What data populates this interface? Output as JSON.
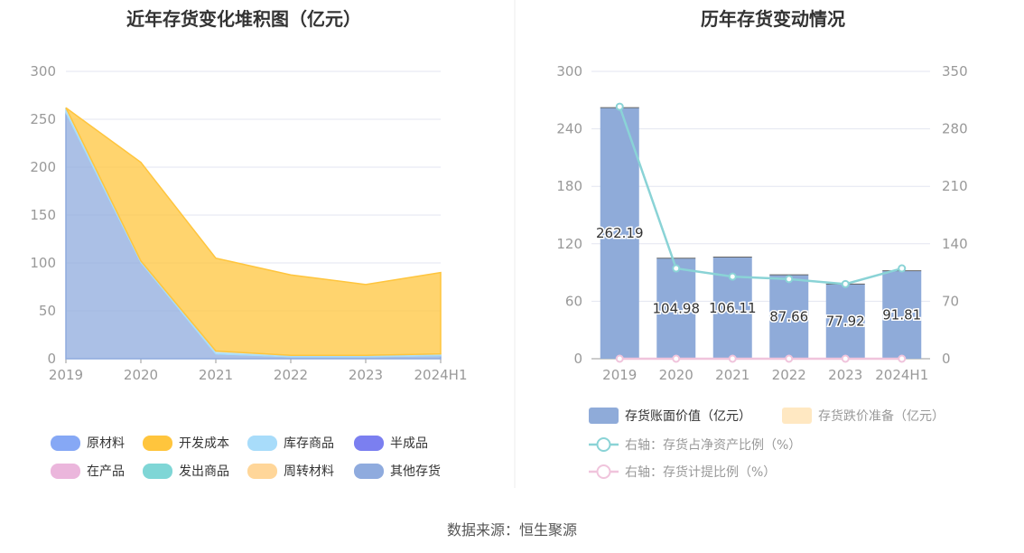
{
  "footer": {
    "source": "数据来源：恒生聚源"
  },
  "chart_data": [
    {
      "type": "area",
      "title": "近年存货变化堆积图（亿元）",
      "x": [
        "2019",
        "2020",
        "2021",
        "2022",
        "2023",
        "2024H1"
      ],
      "ylim": [
        0,
        300
      ],
      "yticks": [
        0,
        50,
        100,
        150,
        200,
        250,
        300
      ],
      "stacked": true,
      "grid": true,
      "legend_position": "bottom",
      "series": [
        {
          "name": "原材料",
          "color": "#86a8f5",
          "values": [
            0,
            0,
            0,
            0,
            0,
            0
          ]
        },
        {
          "name": "开发成本",
          "color": "#ffc53d",
          "values": [
            0,
            103,
            97,
            84,
            74,
            85
          ]
        },
        {
          "name": "库存商品",
          "color": "#a8dcfa",
          "values": [
            5,
            1.5,
            3,
            1.5,
            1.5,
            2
          ]
        },
        {
          "name": "半成品",
          "color": "#7b7ff0",
          "values": [
            0,
            0,
            0,
            0,
            0,
            0
          ]
        },
        {
          "name": "在产品",
          "color": "#ebb6dc",
          "values": [
            0,
            0,
            0,
            0,
            0,
            0
          ]
        },
        {
          "name": "发出商品",
          "color": "#7fd6d6",
          "values": [
            0,
            0,
            0,
            0,
            0,
            0
          ]
        },
        {
          "name": "周转材料",
          "color": "#ffd699",
          "values": [
            0,
            0,
            0,
            0,
            0,
            0
          ]
        },
        {
          "name": "其他存货",
          "color": "#8fabde",
          "values": [
            257,
            100.5,
            5,
            2,
            2,
            3
          ]
        }
      ]
    },
    {
      "type": "bar",
      "title": "历年存货变动情况",
      "categories": [
        "2019",
        "2020",
        "2021",
        "2022",
        "2023",
        "2024H1"
      ],
      "ylim": [
        0,
        300
      ],
      "yticks": [
        0,
        60,
        120,
        180,
        240,
        300
      ],
      "y2lim": [
        0,
        350
      ],
      "y2ticks": [
        0,
        70,
        140,
        210,
        280,
        350
      ],
      "grid": true,
      "legend_position": "bottom",
      "series": [
        {
          "name": "存货账面价值（亿元）",
          "color": "#8fabd9",
          "axis": "left",
          "kind": "bar",
          "values": [
            262.19,
            104.98,
            106.11,
            87.66,
            77.92,
            91.81
          ],
          "labels": [
            "262.19",
            "104.98",
            "106.11",
            "87.66",
            "77.92",
            "91.81"
          ]
        },
        {
          "name": "存货跌价准备（亿元）",
          "color": "#ffe8c2",
          "axis": "left",
          "kind": "bar",
          "values": [
            0,
            0,
            0,
            0,
            0,
            0
          ]
        },
        {
          "name": "右轴：存货占净资产比例（%）",
          "color": "#8ad3d6",
          "axis": "right",
          "kind": "line",
          "values": [
            307,
            110,
            100,
            97,
            91,
            110
          ]
        },
        {
          "name": "右轴：存货计提比例（%）",
          "color": "#f0c4dc",
          "axis": "right",
          "kind": "line",
          "values": [
            0,
            0,
            0,
            0,
            0,
            0
          ]
        }
      ]
    }
  ]
}
